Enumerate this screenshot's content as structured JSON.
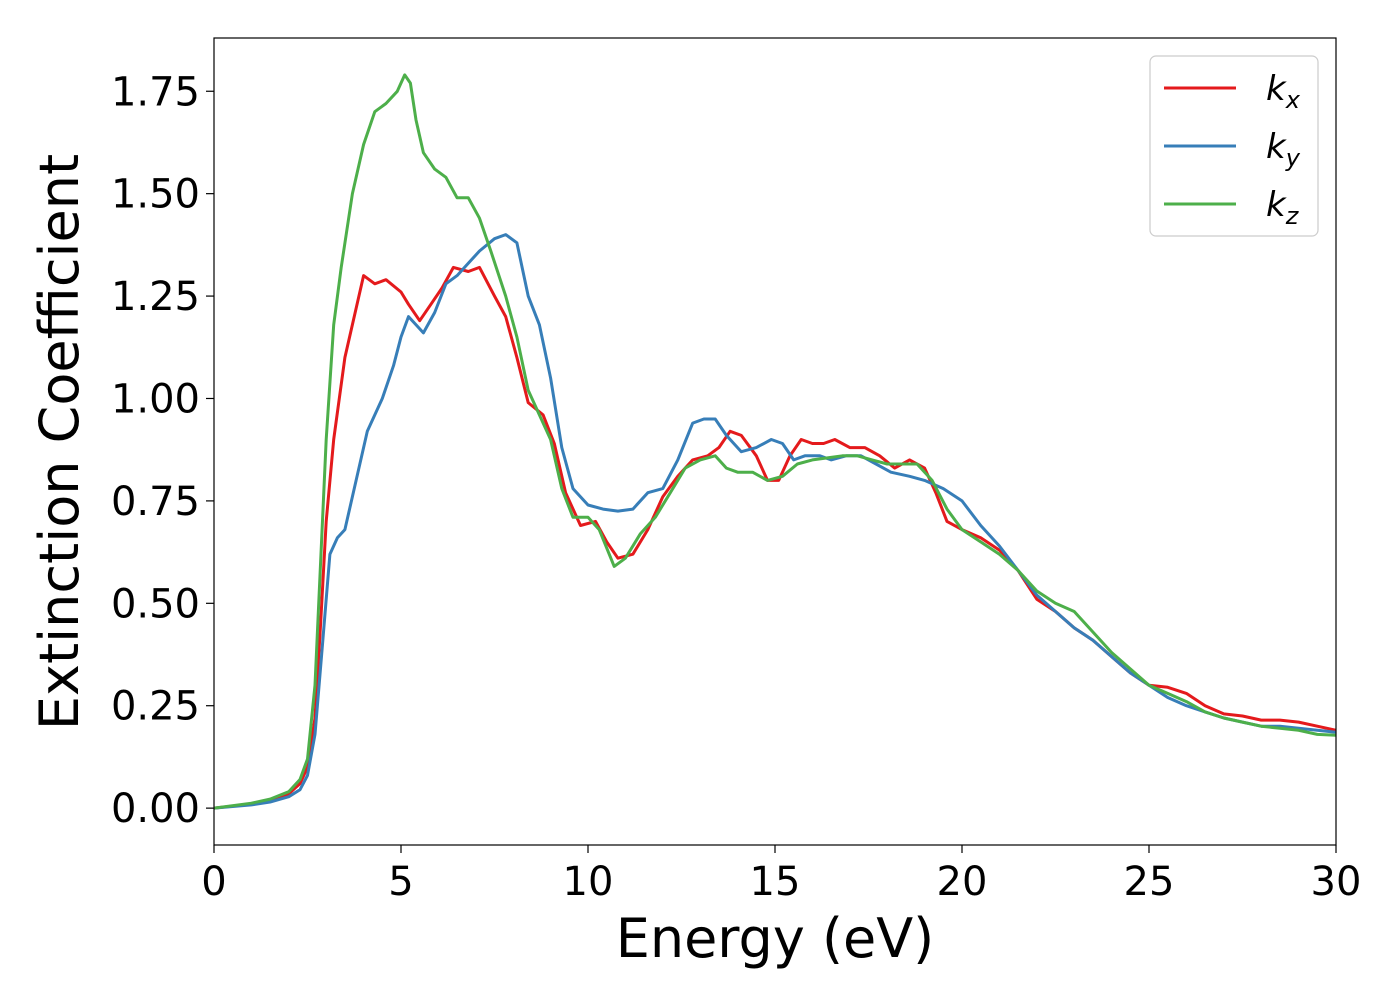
{
  "chart_data": {
    "type": "line",
    "title": "",
    "xlabel": "Energy (eV)",
    "ylabel": "Extinction Coefficient",
    "xlim": [
      0,
      30
    ],
    "ylim": [
      -0.09,
      1.88
    ],
    "xticks": [
      0,
      5,
      10,
      15,
      20,
      25,
      30
    ],
    "yticks": [
      0.0,
      0.25,
      0.5,
      0.75,
      1.0,
      1.25,
      1.5,
      1.75
    ],
    "grid": false,
    "legend_position": "top-right",
    "series": [
      {
        "name": "k",
        "subscript": "x",
        "color": "#e41a1c",
        "points": [
          [
            0,
            0
          ],
          [
            1,
            0.01
          ],
          [
            1.5,
            0.02
          ],
          [
            2,
            0.035
          ],
          [
            2.3,
            0.06
          ],
          [
            2.5,
            0.1
          ],
          [
            2.7,
            0.22
          ],
          [
            2.85,
            0.45
          ],
          [
            3.0,
            0.7
          ],
          [
            3.2,
            0.9
          ],
          [
            3.5,
            1.1
          ],
          [
            3.8,
            1.22
          ],
          [
            4.0,
            1.3
          ],
          [
            4.3,
            1.28
          ],
          [
            4.6,
            1.29
          ],
          [
            5.0,
            1.26
          ],
          [
            5.2,
            1.23
          ],
          [
            5.5,
            1.19
          ],
          [
            5.8,
            1.23
          ],
          [
            6.1,
            1.27
          ],
          [
            6.4,
            1.32
          ],
          [
            6.8,
            1.31
          ],
          [
            7.1,
            1.32
          ],
          [
            7.5,
            1.25
          ],
          [
            7.8,
            1.2
          ],
          [
            8.1,
            1.1
          ],
          [
            8.4,
            0.99
          ],
          [
            8.8,
            0.96
          ],
          [
            9.1,
            0.89
          ],
          [
            9.4,
            0.77
          ],
          [
            9.8,
            0.69
          ],
          [
            10.2,
            0.7
          ],
          [
            10.5,
            0.65
          ],
          [
            10.8,
            0.61
          ],
          [
            11.2,
            0.62
          ],
          [
            11.6,
            0.68
          ],
          [
            12.0,
            0.76
          ],
          [
            12.4,
            0.81
          ],
          [
            12.8,
            0.85
          ],
          [
            13.2,
            0.86
          ],
          [
            13.5,
            0.88
          ],
          [
            13.8,
            0.92
          ],
          [
            14.1,
            0.91
          ],
          [
            14.5,
            0.86
          ],
          [
            14.8,
            0.8
          ],
          [
            15.1,
            0.8
          ],
          [
            15.4,
            0.86
          ],
          [
            15.7,
            0.9
          ],
          [
            16.0,
            0.89
          ],
          [
            16.3,
            0.89
          ],
          [
            16.6,
            0.9
          ],
          [
            17.0,
            0.88
          ],
          [
            17.4,
            0.88
          ],
          [
            17.8,
            0.86
          ],
          [
            18.2,
            0.83
          ],
          [
            18.6,
            0.85
          ],
          [
            19.0,
            0.83
          ],
          [
            19.3,
            0.77
          ],
          [
            19.6,
            0.7
          ],
          [
            20.0,
            0.68
          ],
          [
            20.5,
            0.66
          ],
          [
            21.0,
            0.63
          ],
          [
            21.5,
            0.58
          ],
          [
            22.0,
            0.51
          ],
          [
            22.5,
            0.48
          ],
          [
            23.0,
            0.44
          ],
          [
            23.5,
            0.41
          ],
          [
            24.0,
            0.37
          ],
          [
            24.5,
            0.33
          ],
          [
            25.0,
            0.3
          ],
          [
            25.5,
            0.295
          ],
          [
            26.0,
            0.28
          ],
          [
            26.5,
            0.25
          ],
          [
            27.0,
            0.23
          ],
          [
            27.5,
            0.225
          ],
          [
            28.0,
            0.215
          ],
          [
            28.5,
            0.215
          ],
          [
            29.0,
            0.21
          ],
          [
            29.5,
            0.2
          ],
          [
            30.0,
            0.19
          ]
        ]
      },
      {
        "name": "k",
        "subscript": "y",
        "color": "#377eb8",
        "points": [
          [
            0,
            0
          ],
          [
            1,
            0.008
          ],
          [
            1.5,
            0.015
          ],
          [
            2,
            0.028
          ],
          [
            2.3,
            0.045
          ],
          [
            2.5,
            0.08
          ],
          [
            2.7,
            0.18
          ],
          [
            2.9,
            0.4
          ],
          [
            3.1,
            0.62
          ],
          [
            3.3,
            0.66
          ],
          [
            3.5,
            0.68
          ],
          [
            3.8,
            0.8
          ],
          [
            4.1,
            0.92
          ],
          [
            4.5,
            1.0
          ],
          [
            4.8,
            1.08
          ],
          [
            5.0,
            1.15
          ],
          [
            5.2,
            1.2
          ],
          [
            5.4,
            1.18
          ],
          [
            5.6,
            1.16
          ],
          [
            5.9,
            1.21
          ],
          [
            6.2,
            1.28
          ],
          [
            6.5,
            1.3
          ],
          [
            6.8,
            1.33
          ],
          [
            7.1,
            1.36
          ],
          [
            7.5,
            1.39
          ],
          [
            7.8,
            1.4
          ],
          [
            8.1,
            1.38
          ],
          [
            8.4,
            1.25
          ],
          [
            8.7,
            1.18
          ],
          [
            9.0,
            1.05
          ],
          [
            9.3,
            0.88
          ],
          [
            9.6,
            0.78
          ],
          [
            10.0,
            0.74
          ],
          [
            10.4,
            0.73
          ],
          [
            10.8,
            0.725
          ],
          [
            11.2,
            0.73
          ],
          [
            11.6,
            0.77
          ],
          [
            12.0,
            0.78
          ],
          [
            12.4,
            0.85
          ],
          [
            12.8,
            0.94
          ],
          [
            13.1,
            0.95
          ],
          [
            13.4,
            0.95
          ],
          [
            13.7,
            0.91
          ],
          [
            14.1,
            0.87
          ],
          [
            14.5,
            0.88
          ],
          [
            14.9,
            0.9
          ],
          [
            15.2,
            0.89
          ],
          [
            15.5,
            0.85
          ],
          [
            15.8,
            0.86
          ],
          [
            16.2,
            0.86
          ],
          [
            16.5,
            0.85
          ],
          [
            16.9,
            0.86
          ],
          [
            17.3,
            0.86
          ],
          [
            17.7,
            0.84
          ],
          [
            18.1,
            0.82
          ],
          [
            18.6,
            0.81
          ],
          [
            19.0,
            0.8
          ],
          [
            19.5,
            0.78
          ],
          [
            20.0,
            0.75
          ],
          [
            20.5,
            0.69
          ],
          [
            21.0,
            0.64
          ],
          [
            21.5,
            0.58
          ],
          [
            22.0,
            0.52
          ],
          [
            22.5,
            0.48
          ],
          [
            23.0,
            0.44
          ],
          [
            23.5,
            0.41
          ],
          [
            24.0,
            0.37
          ],
          [
            24.5,
            0.33
          ],
          [
            25.0,
            0.3
          ],
          [
            25.5,
            0.27
          ],
          [
            26.0,
            0.25
          ],
          [
            26.5,
            0.235
          ],
          [
            27.0,
            0.22
          ],
          [
            27.5,
            0.21
          ],
          [
            28.0,
            0.2
          ],
          [
            28.5,
            0.2
          ],
          [
            29.0,
            0.195
          ],
          [
            29.5,
            0.19
          ],
          [
            30.0,
            0.185
          ]
        ]
      },
      {
        "name": "k",
        "subscript": "z",
        "color": "#4daf4a",
        "points": [
          [
            0,
            0
          ],
          [
            1,
            0.012
          ],
          [
            1.5,
            0.022
          ],
          [
            2,
            0.04
          ],
          [
            2.3,
            0.07
          ],
          [
            2.5,
            0.12
          ],
          [
            2.7,
            0.3
          ],
          [
            2.85,
            0.6
          ],
          [
            3.0,
            0.9
          ],
          [
            3.2,
            1.18
          ],
          [
            3.4,
            1.32
          ],
          [
            3.7,
            1.5
          ],
          [
            4.0,
            1.62
          ],
          [
            4.3,
            1.7
          ],
          [
            4.6,
            1.72
          ],
          [
            4.9,
            1.75
          ],
          [
            5.1,
            1.79
          ],
          [
            5.25,
            1.77
          ],
          [
            5.4,
            1.68
          ],
          [
            5.6,
            1.6
          ],
          [
            5.9,
            1.56
          ],
          [
            6.2,
            1.54
          ],
          [
            6.5,
            1.49
          ],
          [
            6.8,
            1.49
          ],
          [
            7.1,
            1.44
          ],
          [
            7.4,
            1.36
          ],
          [
            7.8,
            1.25
          ],
          [
            8.1,
            1.15
          ],
          [
            8.4,
            1.02
          ],
          [
            8.7,
            0.96
          ],
          [
            9.0,
            0.9
          ],
          [
            9.3,
            0.78
          ],
          [
            9.6,
            0.71
          ],
          [
            10.0,
            0.71
          ],
          [
            10.3,
            0.68
          ],
          [
            10.7,
            0.59
          ],
          [
            11.0,
            0.61
          ],
          [
            11.4,
            0.67
          ],
          [
            11.8,
            0.71
          ],
          [
            12.2,
            0.77
          ],
          [
            12.6,
            0.83
          ],
          [
            13.0,
            0.85
          ],
          [
            13.4,
            0.86
          ],
          [
            13.7,
            0.83
          ],
          [
            14.0,
            0.82
          ],
          [
            14.4,
            0.82
          ],
          [
            14.8,
            0.8
          ],
          [
            15.2,
            0.81
          ],
          [
            15.6,
            0.84
          ],
          [
            16.0,
            0.85
          ],
          [
            16.4,
            0.855
          ],
          [
            16.8,
            0.86
          ],
          [
            17.2,
            0.86
          ],
          [
            17.6,
            0.85
          ],
          [
            18.0,
            0.84
          ],
          [
            18.4,
            0.84
          ],
          [
            18.8,
            0.84
          ],
          [
            19.2,
            0.8
          ],
          [
            19.6,
            0.73
          ],
          [
            20.0,
            0.68
          ],
          [
            20.5,
            0.65
          ],
          [
            21.0,
            0.62
          ],
          [
            21.5,
            0.58
          ],
          [
            22.0,
            0.53
          ],
          [
            22.5,
            0.5
          ],
          [
            23.0,
            0.48
          ],
          [
            23.5,
            0.43
          ],
          [
            24.0,
            0.38
          ],
          [
            24.5,
            0.34
          ],
          [
            25.0,
            0.3
          ],
          [
            25.5,
            0.28
          ],
          [
            26.0,
            0.26
          ],
          [
            26.5,
            0.235
          ],
          [
            27.0,
            0.22
          ],
          [
            27.5,
            0.21
          ],
          [
            28.0,
            0.2
          ],
          [
            28.5,
            0.195
          ],
          [
            29.0,
            0.19
          ],
          [
            29.5,
            0.18
          ],
          [
            30.0,
            0.178
          ]
        ]
      }
    ]
  }
}
